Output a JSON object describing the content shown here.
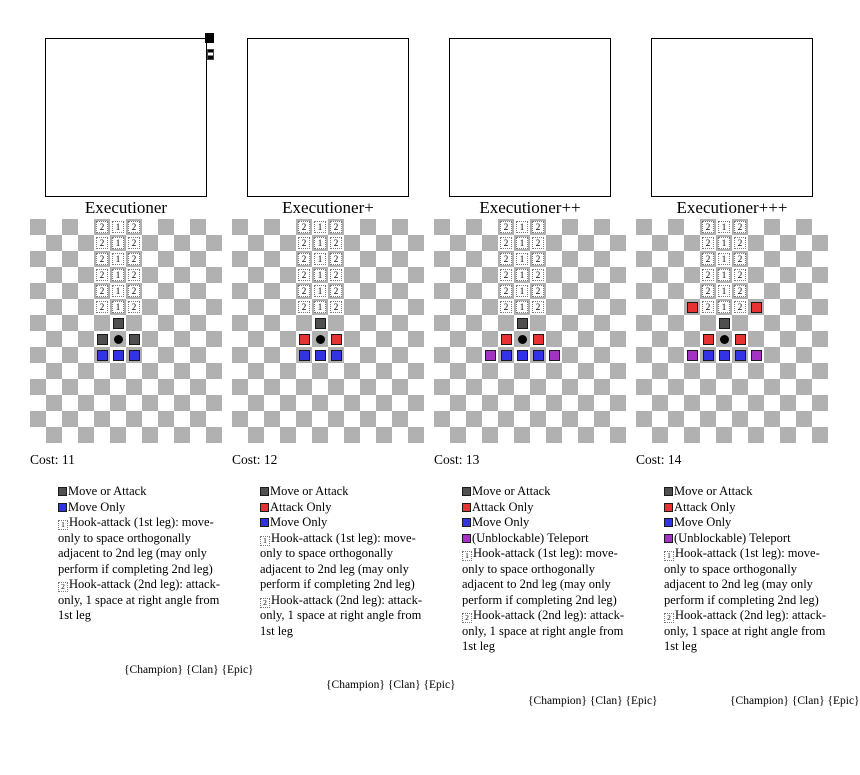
{
  "colors": {
    "checker_gray": "#b1b1b1",
    "checker_white": "#ffffff",
    "move_or_attack": "#4f4f4f",
    "attack_only": "#e53333",
    "move_only": "#3333e6",
    "teleport": "#a233c4",
    "piece": "#000000"
  },
  "grid": {
    "cols": 12,
    "rows": 14
  },
  "cell_types": {
    "leg1": {
      "kind": "digit",
      "digit": "1",
      "label": "hook-first-leg"
    },
    "leg2": {
      "kind": "digit",
      "digit": "2",
      "label": "hook-second-leg"
    },
    "moa": {
      "kind": "square",
      "color": "move_or_attack",
      "label": "move-or-attack"
    },
    "ao": {
      "kind": "square",
      "color": "attack_only",
      "label": "attack-only"
    },
    "mo": {
      "kind": "square",
      "color": "move_only",
      "label": "move-only"
    },
    "tp": {
      "kind": "square",
      "color": "teleport",
      "label": "teleport"
    },
    "piece": {
      "kind": "piece",
      "label": "piece"
    }
  },
  "panels": [
    {
      "id": "executioner",
      "title": "Executioner",
      "cost": "Cost: 11",
      "tags": "{Champion} {Clan} {Epic}",
      "portrait_marker": true,
      "cells": [
        [
          4,
          0,
          "leg2"
        ],
        [
          5,
          0,
          "leg1"
        ],
        [
          6,
          0,
          "leg2"
        ],
        [
          4,
          1,
          "leg2"
        ],
        [
          5,
          1,
          "leg1"
        ],
        [
          6,
          1,
          "leg2"
        ],
        [
          4,
          2,
          "leg2"
        ],
        [
          5,
          2,
          "leg1"
        ],
        [
          6,
          2,
          "leg2"
        ],
        [
          4,
          3,
          "leg2"
        ],
        [
          5,
          3,
          "leg1"
        ],
        [
          6,
          3,
          "leg2"
        ],
        [
          4,
          4,
          "leg2"
        ],
        [
          5,
          4,
          "leg1"
        ],
        [
          6,
          4,
          "leg2"
        ],
        [
          4,
          5,
          "leg2"
        ],
        [
          5,
          5,
          "leg1"
        ],
        [
          6,
          5,
          "leg2"
        ],
        [
          5,
          6,
          "moa"
        ],
        [
          4,
          7,
          "moa"
        ],
        [
          5,
          7,
          "piece"
        ],
        [
          6,
          7,
          "moa"
        ],
        [
          4,
          8,
          "mo"
        ],
        [
          5,
          8,
          "mo"
        ],
        [
          6,
          8,
          "mo"
        ]
      ],
      "legend": [
        {
          "icon": "moa",
          "text": "Move or Attack"
        },
        {
          "icon": "mo",
          "text": "Move Only"
        },
        {
          "icon": "leg1",
          "text": "Hook-attack (1st leg): move-only to space orthogonally adjacent to 2nd leg (may only perform if completing 2nd leg)"
        },
        {
          "icon": "leg2",
          "text": "Hook-attack (2nd leg): attack-only, 1 space at right angle from 1st leg"
        }
      ]
    },
    {
      "id": "executioner-plus",
      "title": "Executioner+",
      "cost": "Cost: 12",
      "tags": "{Champion} {Clan} {Epic}",
      "portrait_marker": false,
      "cells": [
        [
          4,
          0,
          "leg2"
        ],
        [
          5,
          0,
          "leg1"
        ],
        [
          6,
          0,
          "leg2"
        ],
        [
          4,
          1,
          "leg2"
        ],
        [
          5,
          1,
          "leg1"
        ],
        [
          6,
          1,
          "leg2"
        ],
        [
          4,
          2,
          "leg2"
        ],
        [
          5,
          2,
          "leg1"
        ],
        [
          6,
          2,
          "leg2"
        ],
        [
          4,
          3,
          "leg2"
        ],
        [
          5,
          3,
          "leg1"
        ],
        [
          6,
          3,
          "leg2"
        ],
        [
          4,
          4,
          "leg2"
        ],
        [
          5,
          4,
          "leg1"
        ],
        [
          6,
          4,
          "leg2"
        ],
        [
          4,
          5,
          "leg2"
        ],
        [
          5,
          5,
          "leg1"
        ],
        [
          6,
          5,
          "leg2"
        ],
        [
          5,
          6,
          "moa"
        ],
        [
          4,
          7,
          "ao"
        ],
        [
          5,
          7,
          "piece"
        ],
        [
          6,
          7,
          "ao"
        ],
        [
          4,
          8,
          "mo"
        ],
        [
          5,
          8,
          "mo"
        ],
        [
          6,
          8,
          "mo"
        ]
      ],
      "legend": [
        {
          "icon": "moa",
          "text": "Move or Attack"
        },
        {
          "icon": "ao",
          "text": "Attack Only"
        },
        {
          "icon": "mo",
          "text": "Move Only"
        },
        {
          "icon": "leg1",
          "text": "Hook-attack (1st leg): move-only to space orthogonally adjacent to 2nd leg (may only perform if completing 2nd leg)"
        },
        {
          "icon": "leg2",
          "text": "Hook-attack (2nd leg): attack-only, 1 space at right angle from 1st leg"
        }
      ]
    },
    {
      "id": "executioner-plus-plus",
      "title": "Executioner++",
      "cost": "Cost: 13",
      "tags": "{Champion} {Clan} {Epic}",
      "portrait_marker": false,
      "cells": [
        [
          4,
          0,
          "leg2"
        ],
        [
          5,
          0,
          "leg1"
        ],
        [
          6,
          0,
          "leg2"
        ],
        [
          4,
          1,
          "leg2"
        ],
        [
          5,
          1,
          "leg1"
        ],
        [
          6,
          1,
          "leg2"
        ],
        [
          4,
          2,
          "leg2"
        ],
        [
          5,
          2,
          "leg1"
        ],
        [
          6,
          2,
          "leg2"
        ],
        [
          4,
          3,
          "leg2"
        ],
        [
          5,
          3,
          "leg1"
        ],
        [
          6,
          3,
          "leg2"
        ],
        [
          4,
          4,
          "leg2"
        ],
        [
          5,
          4,
          "leg1"
        ],
        [
          6,
          4,
          "leg2"
        ],
        [
          4,
          5,
          "leg2"
        ],
        [
          5,
          5,
          "leg1"
        ],
        [
          6,
          5,
          "leg2"
        ],
        [
          5,
          6,
          "moa"
        ],
        [
          4,
          7,
          "ao"
        ],
        [
          5,
          7,
          "piece"
        ],
        [
          6,
          7,
          "ao"
        ],
        [
          3,
          8,
          "tp"
        ],
        [
          4,
          8,
          "mo"
        ],
        [
          5,
          8,
          "mo"
        ],
        [
          6,
          8,
          "mo"
        ],
        [
          7,
          8,
          "tp"
        ]
      ],
      "legend": [
        {
          "icon": "moa",
          "text": "Move or Attack"
        },
        {
          "icon": "ao",
          "text": "Attack Only"
        },
        {
          "icon": "mo",
          "text": "Move Only"
        },
        {
          "icon": "tp",
          "text": "(Unblockable) Teleport"
        },
        {
          "icon": "leg1",
          "text": "Hook-attack (1st leg): move-only to space orthogonally adjacent to 2nd leg (may only perform if completing 2nd leg)"
        },
        {
          "icon": "leg2",
          "text": "Hook-attack (2nd leg): attack-only, 1 space at right angle from 1st leg"
        }
      ]
    },
    {
      "id": "executioner-plus-plus-plus",
      "title": "Executioner+++",
      "cost": "Cost: 14",
      "tags": "{Champion} {Clan} {Epic}",
      "portrait_marker": false,
      "cells": [
        [
          4,
          0,
          "leg2"
        ],
        [
          5,
          0,
          "leg1"
        ],
        [
          6,
          0,
          "leg2"
        ],
        [
          4,
          1,
          "leg2"
        ],
        [
          5,
          1,
          "leg1"
        ],
        [
          6,
          1,
          "leg2"
        ],
        [
          4,
          2,
          "leg2"
        ],
        [
          5,
          2,
          "leg1"
        ],
        [
          6,
          2,
          "leg2"
        ],
        [
          4,
          3,
          "leg2"
        ],
        [
          5,
          3,
          "leg1"
        ],
        [
          6,
          3,
          "leg2"
        ],
        [
          4,
          4,
          "leg2"
        ],
        [
          5,
          4,
          "leg1"
        ],
        [
          6,
          4,
          "leg2"
        ],
        [
          3,
          5,
          "ao"
        ],
        [
          4,
          5,
          "leg2"
        ],
        [
          5,
          5,
          "leg1"
        ],
        [
          6,
          5,
          "leg2"
        ],
        [
          7,
          5,
          "ao"
        ],
        [
          5,
          6,
          "moa"
        ],
        [
          4,
          7,
          "ao"
        ],
        [
          5,
          7,
          "piece"
        ],
        [
          6,
          7,
          "ao"
        ],
        [
          3,
          8,
          "tp"
        ],
        [
          4,
          8,
          "mo"
        ],
        [
          5,
          8,
          "mo"
        ],
        [
          6,
          8,
          "mo"
        ],
        [
          7,
          8,
          "tp"
        ]
      ],
      "legend": [
        {
          "icon": "moa",
          "text": "Move or Attack"
        },
        {
          "icon": "ao",
          "text": "Attack Only"
        },
        {
          "icon": "mo",
          "text": "Move Only"
        },
        {
          "icon": "tp",
          "text": "(Unblockable) Teleport"
        },
        {
          "icon": "leg1",
          "text": "Hook-attack (1st leg): move-only to space orthogonally adjacent to 2nd leg (may only perform if completing 2nd leg)"
        },
        {
          "icon": "leg2",
          "text": "Hook-attack (2nd leg): attack-only, 1 space at right angle from 1st leg"
        }
      ]
    }
  ]
}
